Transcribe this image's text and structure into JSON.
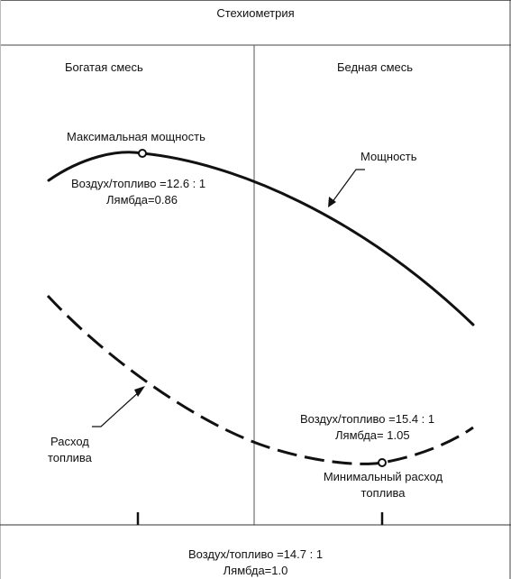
{
  "header": {
    "title": "Стехиометрия"
  },
  "zones": {
    "rich": "Богатая смесь",
    "lean": "Бедная смесь"
  },
  "power": {
    "curve_label": "Мощность",
    "max_label": "Максимальная мощность",
    "ratio": "Воздух/топливо =12.6 : 1",
    "lambda": "Лямбда=0.86"
  },
  "fuel": {
    "curve_label_line1": "Расход",
    "curve_label_line2": "топлива",
    "min_label_line1": "Минимальный расход",
    "min_label_line2": "топлива",
    "ratio": "Воздух/топливо =15.4 : 1",
    "lambda": "Лямбда= 1.05"
  },
  "footer": {
    "ratio": "Воздух/топливо =14.7 : 1",
    "lambda": "Лямбда=1.0"
  }
}
